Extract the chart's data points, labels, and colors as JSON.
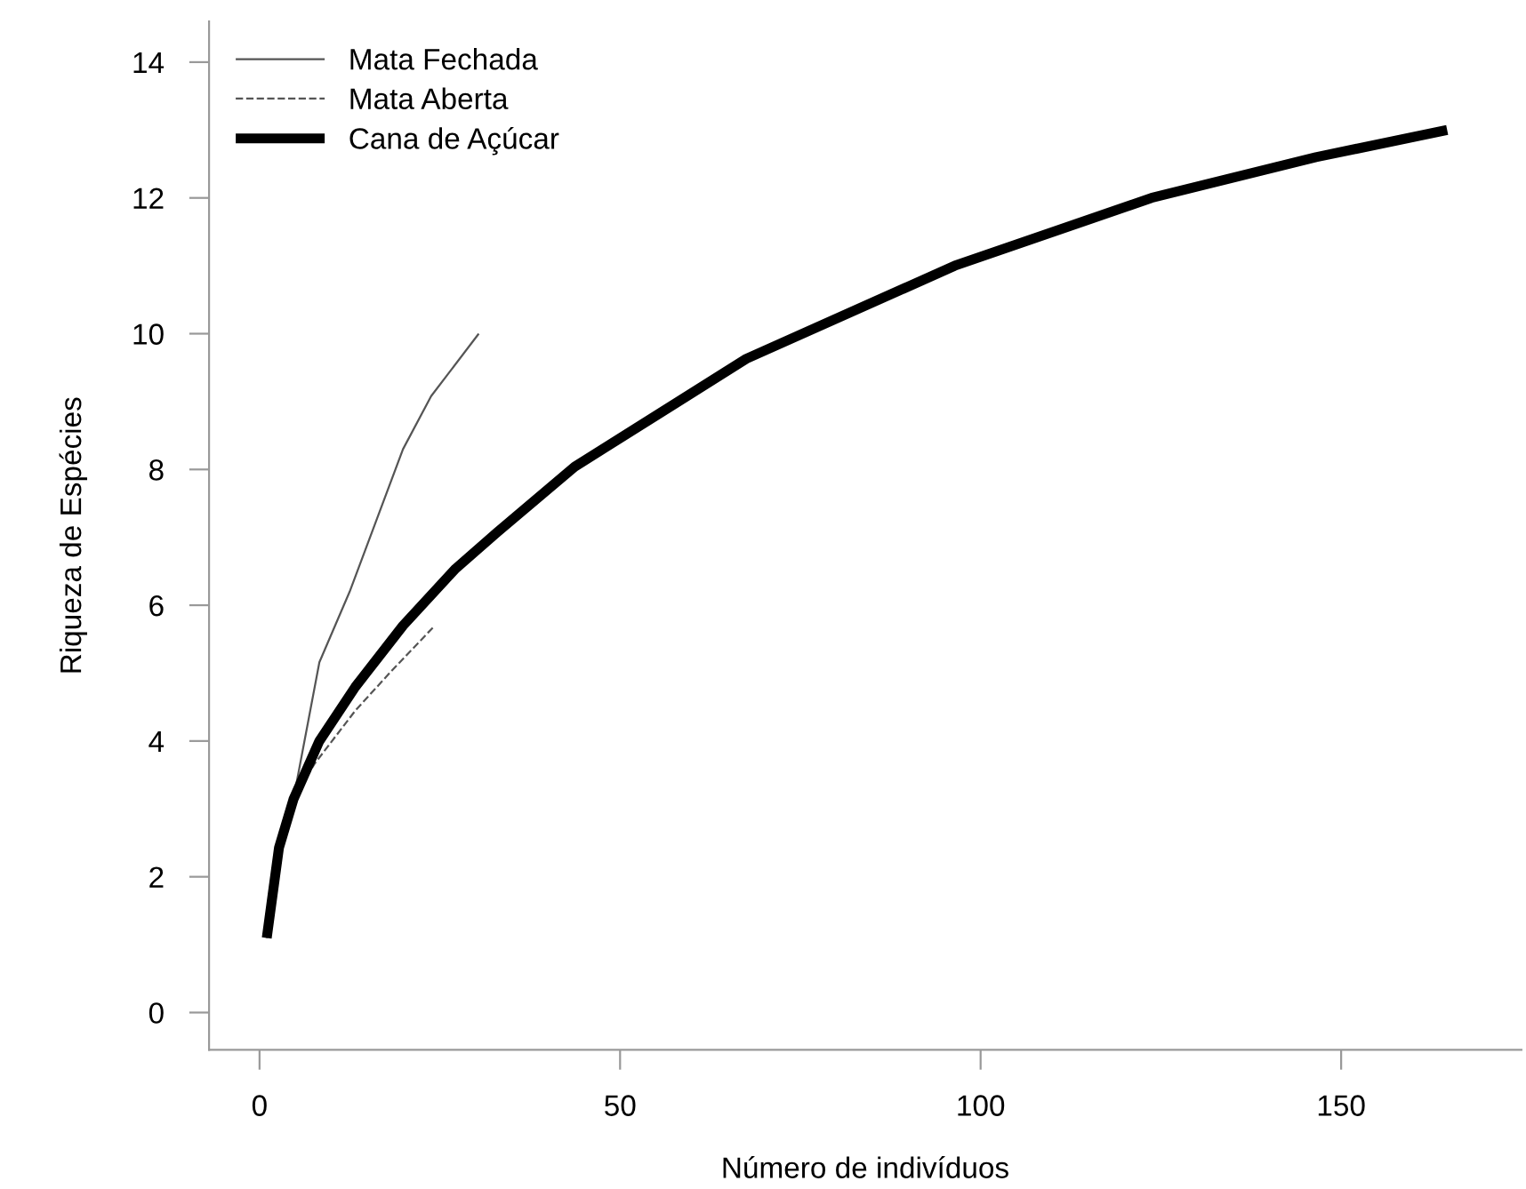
{
  "chart_data": {
    "type": "line",
    "xlabel": "Número de indivíduos",
    "ylabel": "Riqueza de Espécies",
    "xlim": [
      -7,
      175
    ],
    "ylim": [
      -0.55,
      14.6
    ],
    "xticks": [
      0,
      50,
      100,
      150
    ],
    "yticks": [
      0,
      2,
      4,
      6,
      8,
      10,
      12,
      14
    ],
    "grid": false,
    "legend": "top left",
    "marker": "none",
    "series": [
      {
        "name": "Mata Fechada",
        "color": "#555555",
        "line_style": "solid",
        "x": [
          1,
          2.7,
          4.7,
          8.3,
          12.5,
          19.9,
          23.8,
          30.4
        ],
        "values": [
          1.1,
          2.43,
          3.14,
          5.16,
          6.2,
          8.3,
          9.08,
          10.0
        ]
      },
      {
        "name": "Mata Aberta",
        "color": "#555555",
        "line_style": "dashed",
        "x": [
          1,
          2.7,
          4.7,
          7.6,
          13.3,
          18.2,
          24.3
        ],
        "values": [
          1.1,
          2.43,
          3.14,
          3.66,
          4.45,
          5.02,
          5.7
        ]
      },
      {
        "name": "Cana de Açúcar",
        "color": "#000000",
        "line_style": "solid",
        "x": [
          1,
          2.7,
          4.7,
          8.3,
          13.3,
          19.9,
          27.2,
          32.9,
          43.7,
          67.5,
          96.4,
          123.7,
          146.5,
          164.7
        ],
        "values": [
          1.1,
          2.43,
          3.14,
          4.0,
          4.8,
          5.7,
          6.54,
          7.07,
          8.04,
          9.63,
          11.0,
          12.0,
          12.6,
          13.0
        ]
      }
    ]
  }
}
